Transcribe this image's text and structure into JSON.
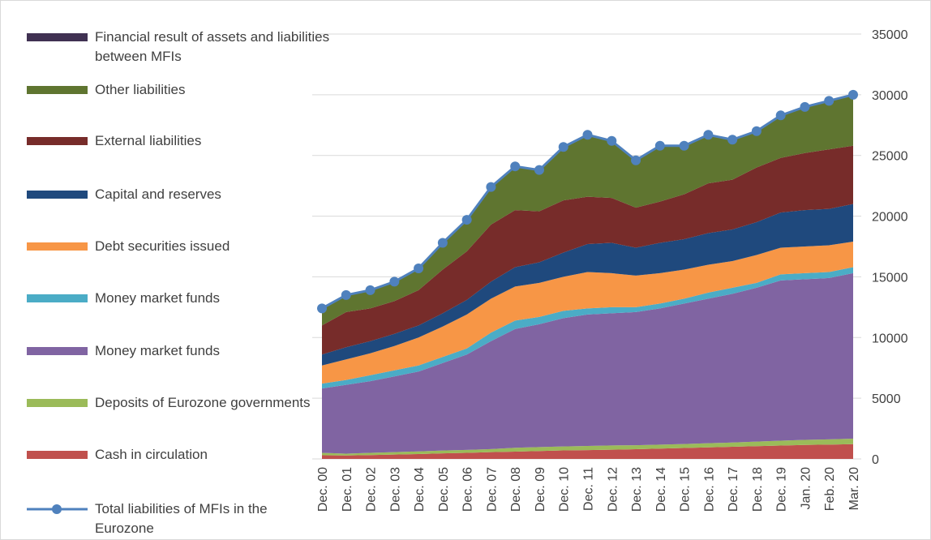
{
  "chart_data": {
    "type": "area",
    "stacked": true,
    "categories": [
      "Dec. 00",
      "Dec. 01",
      "Dec. 02",
      "Dec. 03",
      "Dec. 04",
      "Dec. 05",
      "Dec. 06",
      "Dec. 07",
      "Dec. 08",
      "Dec. 09",
      "Dec. 10",
      "Dec. 11",
      "Dec. 12",
      "Dec. 13",
      "Dec. 14",
      "Dec. 15",
      "Dec. 16",
      "Dec. 17",
      "Dec. 18",
      "Dec. 19",
      "Jan. 20",
      "Feb. 20",
      "Mar. 20"
    ],
    "series": [
      {
        "name": "Cash in circulation",
        "color": "#c0504d",
        "values": [
          300,
          280,
          320,
          360,
          400,
          460,
          500,
          560,
          600,
          650,
          700,
          730,
          760,
          800,
          850,
          900,
          950,
          1000,
          1050,
          1100,
          1150,
          1180,
          1220
        ]
      },
      {
        "name": "Deposits of Eurozone governments",
        "color": "#9bbb59",
        "values": [
          200,
          150,
          180,
          200,
          220,
          230,
          240,
          250,
          320,
          330,
          330,
          340,
          350,
          330,
          330,
          330,
          340,
          350,
          380,
          400,
          420,
          430,
          450
        ]
      },
      {
        "name": "Money market funds",
        "color": "#8064a2",
        "values": [
          5300,
          5670,
          5900,
          6240,
          6580,
          7210,
          7860,
          8890,
          9780,
          10120,
          10570,
          10830,
          10890,
          10970,
          11220,
          11570,
          11910,
          12250,
          12670,
          13200,
          13230,
          13290,
          13630
        ]
      },
      {
        "name": "Money market funds",
        "color": "#4bacc6",
        "values": [
          400,
          400,
          500,
          500,
          500,
          500,
          500,
          700,
          700,
          600,
          600,
          500,
          500,
          400,
          400,
          400,
          500,
          500,
          400,
          500,
          500,
          500,
          500
        ]
      },
      {
        "name": "Debt securities issued",
        "color": "#f79646",
        "values": [
          1500,
          1700,
          1800,
          2000,
          2300,
          2500,
          2800,
          2800,
          2800,
          2800,
          2800,
          3000,
          2800,
          2600,
          2500,
          2400,
          2300,
          2200,
          2300,
          2200,
          2200,
          2200,
          2100
        ]
      },
      {
        "name": "Capital and reserves",
        "color": "#1f497d",
        "values": [
          900,
          1000,
          1000,
          1000,
          1000,
          1100,
          1200,
          1400,
          1600,
          1700,
          2000,
          2300,
          2500,
          2300,
          2500,
          2500,
          2600,
          2600,
          2700,
          2900,
          3000,
          3000,
          3100
        ]
      },
      {
        "name": "External liabilities",
        "color": "#772c2a",
        "values": [
          2400,
          2900,
          2700,
          2700,
          2900,
          3600,
          4000,
          4700,
          4700,
          4200,
          4300,
          3900,
          3700,
          3300,
          3400,
          3700,
          4100,
          4100,
          4500,
          4500,
          4700,
          4900,
          4800
        ]
      },
      {
        "name": "Other liabilities",
        "color": "#5f7530",
        "values": [
          1400,
          1400,
          1500,
          1600,
          1800,
          2200,
          2600,
          3100,
          3600,
          3400,
          4400,
          5100,
          4700,
          3900,
          4600,
          4000,
          4000,
          3300,
          3000,
          3500,
          3800,
          4000,
          4200
        ]
      },
      {
        "name": "Financial result of assets and liabilities between MFIs",
        "color": "#403152",
        "values": [
          0,
          0,
          0,
          0,
          0,
          0,
          0,
          0,
          0,
          0,
          0,
          0,
          0,
          0,
          0,
          0,
          0,
          0,
          0,
          0,
          0,
          0,
          0
        ]
      }
    ],
    "line_series": {
      "name": "Total liabilities of MFIs in the Eurozone",
      "color": "#4f81bd",
      "values": [
        12400,
        13500,
        13900,
        14600,
        15700,
        17800,
        19700,
        22400,
        24100,
        23800,
        25700,
        26700,
        26200,
        24600,
        25800,
        25800,
        26700,
        26300,
        27000,
        28300,
        29000,
        29500,
        30000
      ]
    },
    "ylim": [
      0,
      35000
    ],
    "yticks": [
      0,
      5000,
      10000,
      15000,
      20000,
      25000,
      30000,
      35000
    ],
    "grid": true,
    "legend": "left"
  }
}
